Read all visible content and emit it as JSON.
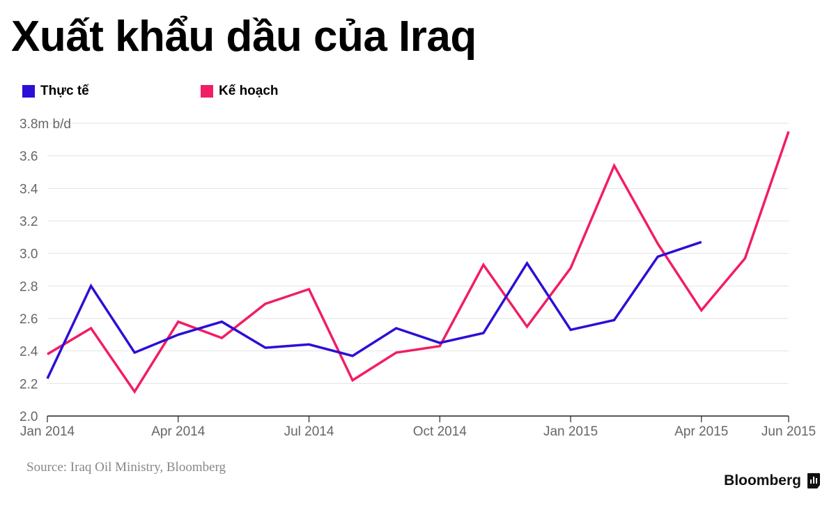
{
  "title": "Xuất khẩu dầu của Iraq",
  "source": "Source: Iraq Oil Ministry, Bloomberg",
  "brand": "Bloomberg",
  "colors": {
    "actual": "#2b0fd6",
    "plan": "#f21d63",
    "grid": "#e3e3e3",
    "axis": "#666666"
  },
  "chart_data": {
    "type": "line",
    "ylim": [
      2.0,
      3.8
    ],
    "yticks": [
      "2.0",
      "2.2",
      "2.4",
      "2.6",
      "2.8",
      "3.0",
      "3.2",
      "3.4",
      "3.6",
      "3.8m b/d"
    ],
    "xticks": [
      "Jan 2014",
      "Apr 2014",
      "Jul 2014",
      "Oct 2014",
      "Jan 2015",
      "Apr 2015",
      "Jun 2015"
    ],
    "x": [
      "2014-01",
      "2014-02",
      "2014-03",
      "2014-04",
      "2014-05",
      "2014-06",
      "2014-07",
      "2014-08",
      "2014-09",
      "2014-10",
      "2014-11",
      "2014-12",
      "2015-01",
      "2015-02",
      "2015-03",
      "2015-04",
      "2015-05",
      "2015-06"
    ],
    "series": [
      {
        "name": "Thực tế",
        "color": "#2b0fd6",
        "values": [
          2.23,
          2.8,
          2.39,
          2.5,
          2.58,
          2.42,
          2.44,
          2.37,
          2.54,
          2.45,
          2.51,
          2.94,
          2.53,
          2.59,
          2.98,
          3.07,
          null,
          null
        ]
      },
      {
        "name": "Kế hoạch",
        "color": "#f21d63",
        "values": [
          2.38,
          2.54,
          2.15,
          2.58,
          2.48,
          2.69,
          2.78,
          2.22,
          2.39,
          2.43,
          2.93,
          2.55,
          2.91,
          3.54,
          3.06,
          2.65,
          2.97,
          3.75
        ]
      }
    ]
  }
}
